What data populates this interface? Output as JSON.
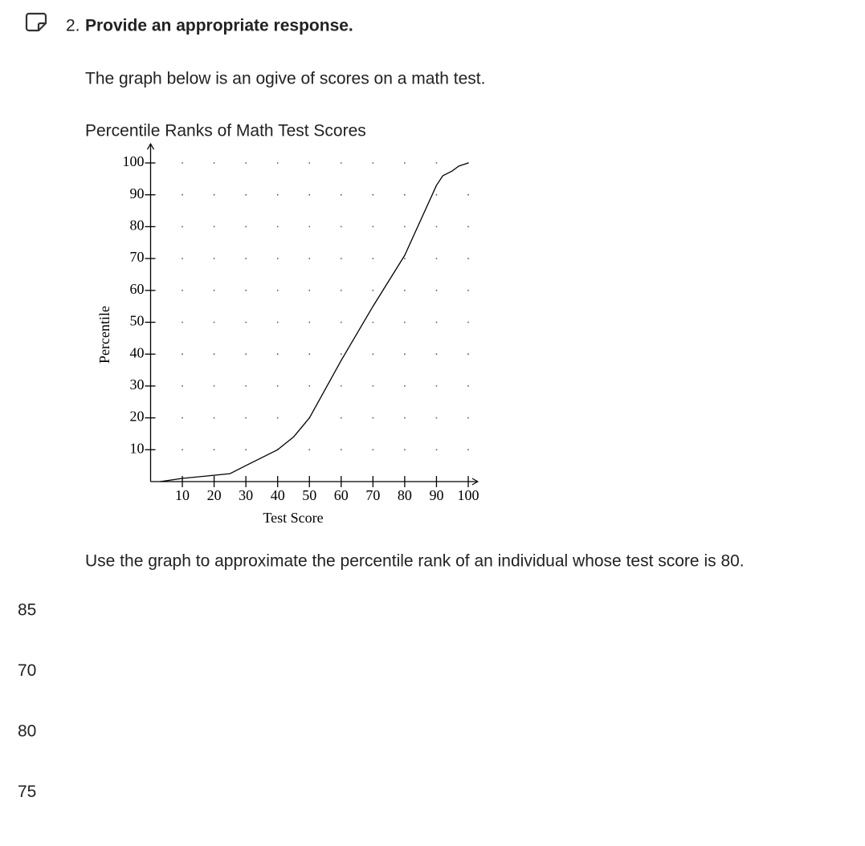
{
  "question": {
    "number": "2.",
    "prompt": "Provide an appropriate response.",
    "intro": "The graph below is an ogive of scores on a math test.",
    "text": "Use the graph to approximate the percentile rank of an individual whose test score is 80."
  },
  "options": [
    "85",
    "70",
    "80",
    "75"
  ],
  "chart_data": {
    "type": "line",
    "title": "Percentile Ranks of Math Test Scores",
    "x_label": "Test Score",
    "y_label": "Percentile",
    "x": [
      3,
      10,
      20,
      25,
      30,
      40,
      45,
      50,
      60,
      70,
      80,
      90,
      92,
      95,
      97,
      100
    ],
    "values": [
      0,
      1,
      2,
      2.5,
      5,
      10,
      14,
      20,
      38,
      55,
      71,
      93,
      96,
      97.5,
      99,
      100
    ],
    "color": "#000000",
    "xlim": [
      0,
      103
    ],
    "ylim": [
      0,
      106
    ],
    "xticks": [
      10,
      20,
      30,
      40,
      50,
      60,
      70,
      80,
      90,
      100
    ],
    "yticks": [
      10,
      20,
      30,
      40,
      50,
      60,
      70,
      80,
      90,
      100
    ],
    "grid": true
  }
}
